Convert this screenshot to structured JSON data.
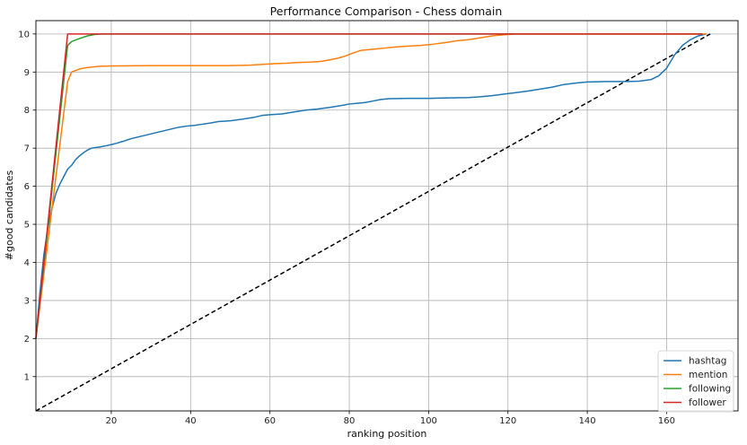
{
  "chart_data": {
    "type": "line",
    "title": "Performance Comparison - Chess domain",
    "xlabel": "ranking position",
    "ylabel": "#good candidates",
    "xlim": [
      1,
      178
    ],
    "ylim": [
      0.1,
      10.35
    ],
    "xticks": [
      20,
      40,
      60,
      80,
      100,
      120,
      140,
      160
    ],
    "yticks": [
      1,
      2,
      3,
      4,
      5,
      6,
      7,
      8,
      9,
      10
    ],
    "grid": true,
    "legend_position": "bottom-right",
    "series": [
      {
        "name": "hashtag",
        "color": "#1f77b4",
        "style": "solid",
        "points": [
          [
            1,
            2.0
          ],
          [
            2,
            3.2
          ],
          [
            3,
            4.2
          ],
          [
            4,
            4.9
          ],
          [
            5,
            5.4
          ],
          [
            6,
            5.8
          ],
          [
            7,
            6.05
          ],
          [
            8,
            6.25
          ],
          [
            9,
            6.45
          ],
          [
            10,
            6.55
          ],
          [
            11,
            6.7
          ],
          [
            12,
            6.8
          ],
          [
            13,
            6.88
          ],
          [
            14,
            6.95
          ],
          [
            15,
            7.0
          ],
          [
            17,
            7.03
          ],
          [
            19,
            7.07
          ],
          [
            21,
            7.12
          ],
          [
            23,
            7.18
          ],
          [
            25,
            7.25
          ],
          [
            27,
            7.3
          ],
          [
            29,
            7.35
          ],
          [
            31,
            7.4
          ],
          [
            33,
            7.45
          ],
          [
            35,
            7.5
          ],
          [
            37,
            7.55
          ],
          [
            39,
            7.58
          ],
          [
            41,
            7.6
          ],
          [
            43,
            7.63
          ],
          [
            45,
            7.66
          ],
          [
            47,
            7.7
          ],
          [
            50,
            7.72
          ],
          [
            53,
            7.76
          ],
          [
            56,
            7.81
          ],
          [
            58,
            7.86
          ],
          [
            60,
            7.88
          ],
          [
            63,
            7.9
          ],
          [
            66,
            7.95
          ],
          [
            69,
            8.0
          ],
          [
            72,
            8.03
          ],
          [
            75,
            8.07
          ],
          [
            78,
            8.12
          ],
          [
            80,
            8.16
          ],
          [
            82,
            8.18
          ],
          [
            84,
            8.2
          ],
          [
            86,
            8.24
          ],
          [
            88,
            8.28
          ],
          [
            90,
            8.3
          ],
          [
            95,
            8.31
          ],
          [
            100,
            8.31
          ],
          [
            105,
            8.32
          ],
          [
            110,
            8.33
          ],
          [
            113,
            8.35
          ],
          [
            116,
            8.38
          ],
          [
            119,
            8.42
          ],
          [
            122,
            8.46
          ],
          [
            125,
            8.5
          ],
          [
            128,
            8.55
          ],
          [
            131,
            8.6
          ],
          [
            134,
            8.67
          ],
          [
            137,
            8.71
          ],
          [
            140,
            8.74
          ],
          [
            145,
            8.75
          ],
          [
            150,
            8.75
          ],
          [
            153,
            8.76
          ],
          [
            156,
            8.8
          ],
          [
            158,
            8.9
          ],
          [
            160,
            9.1
          ],
          [
            162,
            9.45
          ],
          [
            164,
            9.7
          ],
          [
            166,
            9.85
          ],
          [
            168,
            9.95
          ],
          [
            170,
            10.0
          ]
        ]
      },
      {
        "name": "mention",
        "color": "#ff7f0e",
        "style": "solid",
        "points": [
          [
            1,
            2.0
          ],
          [
            9,
            8.75
          ],
          [
            10,
            9.0
          ],
          [
            12,
            9.08
          ],
          [
            14,
            9.12
          ],
          [
            17,
            9.15
          ],
          [
            20,
            9.16
          ],
          [
            30,
            9.17
          ],
          [
            40,
            9.17
          ],
          [
            50,
            9.17
          ],
          [
            55,
            9.18
          ],
          [
            58,
            9.2
          ],
          [
            61,
            9.22
          ],
          [
            64,
            9.23
          ],
          [
            67,
            9.25
          ],
          [
            70,
            9.26
          ],
          [
            73,
            9.28
          ],
          [
            75,
            9.32
          ],
          [
            77,
            9.36
          ],
          [
            79,
            9.42
          ],
          [
            81,
            9.5
          ],
          [
            83,
            9.57
          ],
          [
            86,
            9.6
          ],
          [
            89,
            9.63
          ],
          [
            92,
            9.66
          ],
          [
            95,
            9.68
          ],
          [
            98,
            9.7
          ],
          [
            101,
            9.73
          ],
          [
            104,
            9.77
          ],
          [
            107,
            9.82
          ],
          [
            110,
            9.85
          ],
          [
            113,
            9.9
          ],
          [
            116,
            9.95
          ],
          [
            119,
            9.98
          ],
          [
            122,
            10.0
          ],
          [
            170,
            10.0
          ]
        ]
      },
      {
        "name": "following",
        "color": "#2ca02c",
        "style": "solid",
        "points": [
          [
            1,
            2.0
          ],
          [
            9,
            9.7
          ],
          [
            10,
            9.8
          ],
          [
            12,
            9.88
          ],
          [
            14,
            9.95
          ],
          [
            16,
            9.99
          ],
          [
            18,
            10.0
          ],
          [
            169,
            10.0
          ]
        ]
      },
      {
        "name": "follower",
        "color": "#d62728",
        "style": "solid",
        "points": [
          [
            1,
            2.0
          ],
          [
            9,
            10.0
          ],
          [
            169,
            10.0
          ]
        ]
      },
      {
        "name": "",
        "color": "#000000",
        "style": "dashed",
        "points": [
          [
            1,
            0.1
          ],
          [
            171,
            10.0
          ]
        ]
      }
    ]
  }
}
